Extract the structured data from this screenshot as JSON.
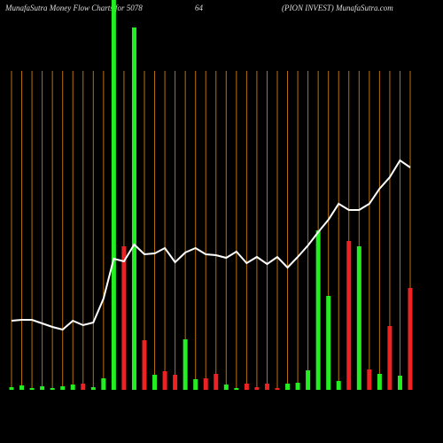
{
  "chart_data": {
    "type": "bar",
    "title": "MunafaSutra  Money Flow  Charts for 5078",
    "title_mid": "64",
    "title_right": "(PION  INVEST) MunafaSutra.com",
    "categories": [
      null,
      null,
      null,
      null,
      null,
      null,
      null,
      null,
      null,
      null,
      null,
      null,
      null,
      null,
      null,
      null,
      null,
      null,
      null,
      null,
      null,
      null,
      null,
      null,
      null,
      null,
      null,
      null,
      null,
      null,
      null,
      null,
      null,
      null,
      null,
      null,
      null,
      null,
      null,
      null
    ],
    "ylim": [
      0,
      440
    ],
    "grid": true,
    "grid_color": "#b8720a",
    "series": [
      {
        "type": "bar",
        "values": [
          3,
          5,
          2,
          4,
          2,
          4,
          6,
          7,
          3,
          13,
          440,
          162,
          409,
          56,
          17,
          21,
          17,
          57,
          12,
          13,
          18,
          6,
          2,
          7,
          3,
          7,
          2,
          7,
          8,
          22,
          180,
          106,
          10,
          168,
          162,
          23,
          18,
          72,
          16,
          115
        ],
        "colors": [
          "#22ee22",
          "#22ee22",
          "#22ee22",
          "#22ee22",
          "#22ee22",
          "#22ee22",
          "#22ee22",
          "#ee2222",
          "#22ee22",
          "#22ee22",
          "#22ee22",
          "#ee2222",
          "#22ee22",
          "#ee2222",
          "#22ee22",
          "#ee2222",
          "#ee2222",
          "#22ee22",
          "#22ee22",
          "#ee2222",
          "#ee2222",
          "#22ee22",
          "#22ee22",
          "#ee2222",
          "#ee2222",
          "#ee2222",
          "#ee2222",
          "#22ee22",
          "#22ee22",
          "#22ee22",
          "#22ee22",
          "#22ee22",
          "#22ee22",
          "#ee2222",
          "#22ee22",
          "#ee2222",
          "#22ee22",
          "#ee2222",
          "#22ee22",
          "#ee2222"
        ]
      },
      {
        "type": "line",
        "color": "#ffffff",
        "values": [
          78,
          79,
          79,
          75,
          71,
          68,
          78,
          73,
          76,
          103,
          148,
          145,
          164,
          153,
          154,
          160,
          144,
          155,
          160,
          153,
          152,
          149,
          156,
          143,
          150,
          142,
          150,
          138,
          150,
          163,
          178,
          192,
          210,
          203,
          203,
          210,
          227,
          240,
          259,
          251
        ]
      }
    ]
  }
}
